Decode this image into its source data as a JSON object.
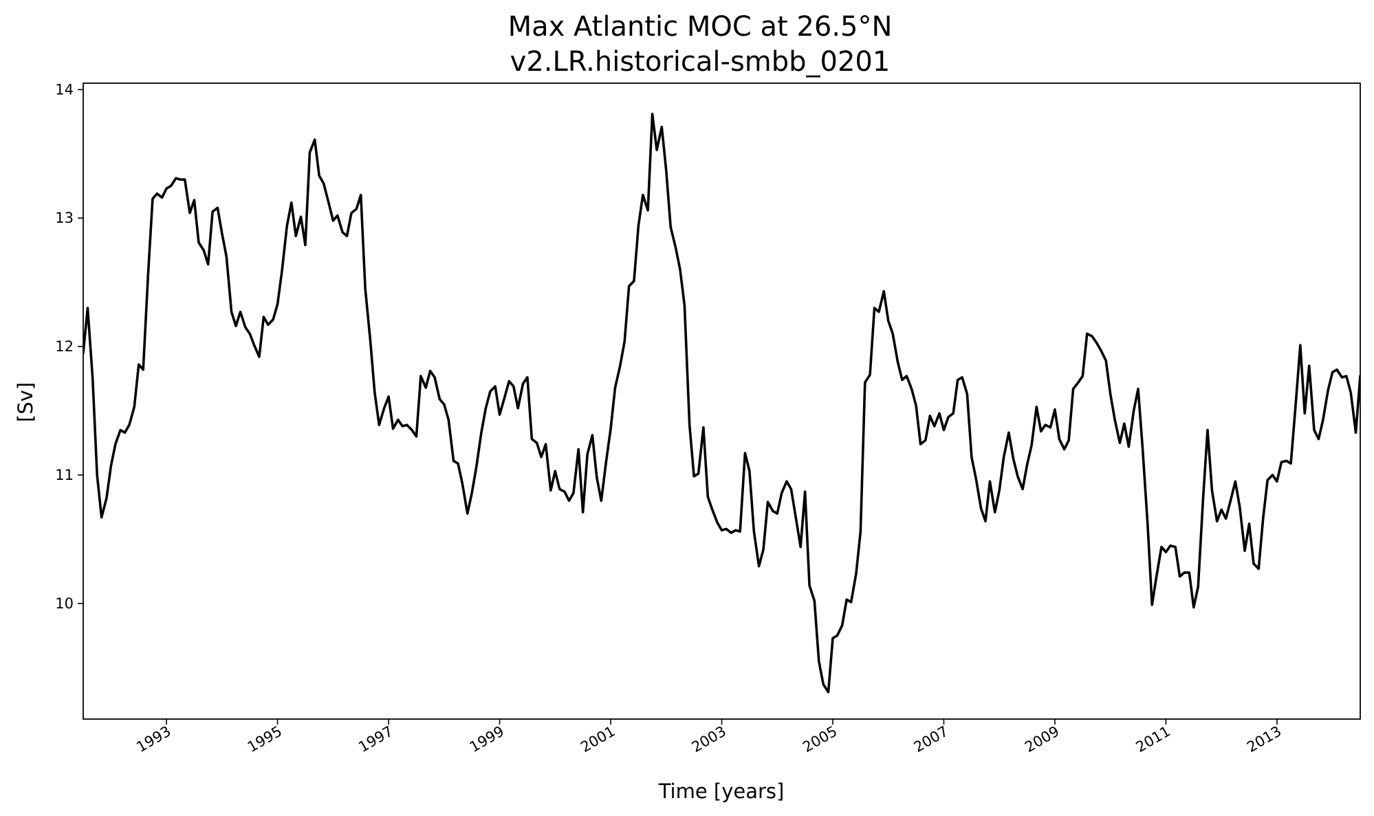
{
  "chart_data": {
    "type": "line",
    "title": "Max Atlantic MOC at 26.5°N",
    "subtitle": "v2.LR.historical-smbb_0201",
    "xlabel": "Time [years]",
    "ylabel": "[Sv]",
    "xlim": [
      1991.5,
      2014.5
    ],
    "ylim": [
      9.1,
      14.05
    ],
    "x_ticks": [
      "1993",
      "1995",
      "1997",
      "1999",
      "2001",
      "2003",
      "2005",
      "2007",
      "2009",
      "2011",
      "2013"
    ],
    "y_ticks": [
      "10",
      "11",
      "12",
      "13",
      "14"
    ],
    "grid": false,
    "legend": "none",
    "line_color": "#000000",
    "series": [
      {
        "x": [
          1991.5,
          1991.58,
          1991.67,
          1991.75,
          1991.83,
          1991.92,
          1992.0,
          1992.08,
          1992.17,
          1992.25,
          1992.33,
          1992.42,
          1992.5,
          1992.58,
          1992.67,
          1992.75,
          1992.83,
          1992.92,
          1993.0,
          1993.08,
          1993.17,
          1993.25,
          1993.33,
          1993.42,
          1993.5,
          1993.58,
          1993.67,
          1993.75,
          1993.83,
          1993.92,
          1994.0,
          1994.08,
          1994.17,
          1994.25,
          1994.33,
          1994.42,
          1994.5,
          1994.58,
          1994.67,
          1994.75,
          1994.83,
          1994.92,
          1995.0,
          1995.08,
          1995.17,
          1995.25,
          1995.33,
          1995.42,
          1995.5,
          1995.58,
          1995.67,
          1995.75,
          1995.83,
          1995.92,
          1996.0,
          1996.08,
          1996.17,
          1996.25,
          1996.33,
          1996.42,
          1996.5,
          1996.58,
          1996.67,
          1996.75,
          1996.83,
          1996.92,
          1997.0,
          1997.08,
          1997.17,
          1997.25,
          1997.33,
          1997.42,
          1997.5,
          1997.58,
          1997.67,
          1997.75,
          1997.83,
          1997.92,
          1998.0,
          1998.08,
          1998.17,
          1998.25,
          1998.33,
          1998.42,
          1998.5,
          1998.58,
          1998.67,
          1998.75,
          1998.83,
          1998.92,
          1999.0,
          1999.08,
          1999.17,
          1999.25,
          1999.33,
          1999.42,
          1999.5,
          1999.58,
          1999.67,
          1999.75,
          1999.83,
          1999.92,
          2000.0,
          2000.08,
          2000.17,
          2000.25,
          2000.33,
          2000.42,
          2000.5,
          2000.58,
          2000.67,
          2000.75,
          2000.83,
          2000.92,
          2001.0,
          2001.08,
          2001.17,
          2001.25,
          2001.33,
          2001.42,
          2001.5,
          2001.58,
          2001.67,
          2001.75,
          2001.83,
          2001.92,
          2002.0,
          2002.08,
          2002.17,
          2002.25,
          2002.33,
          2002.42,
          2002.5,
          2002.58,
          2002.67,
          2002.75,
          2002.83,
          2002.92,
          2003.0,
          2003.08,
          2003.17,
          2003.25,
          2003.33,
          2003.42,
          2003.5,
          2003.58,
          2003.67,
          2003.75,
          2003.83,
          2003.92,
          2004.0,
          2004.08,
          2004.17,
          2004.25,
          2004.33,
          2004.42,
          2004.5,
          2004.58,
          2004.67,
          2004.75,
          2004.83,
          2004.92,
          2005.0,
          2005.08,
          2005.17,
          2005.25,
          2005.33,
          2005.42,
          2005.5,
          2005.58,
          2005.67,
          2005.75,
          2005.83,
          2005.92,
          2006.0,
          2006.08,
          2006.17,
          2006.25,
          2006.33,
          2006.42,
          2006.5,
          2006.58,
          2006.67,
          2006.75,
          2006.83,
          2006.92,
          2007.0,
          2007.08,
          2007.17,
          2007.25,
          2007.33,
          2007.42,
          2007.5,
          2007.58,
          2007.67,
          2007.75,
          2007.83,
          2007.92,
          2008.0,
          2008.08,
          2008.17,
          2008.25,
          2008.33,
          2008.42,
          2008.5,
          2008.58,
          2008.67,
          2008.75,
          2008.83,
          2008.92,
          2009.0,
          2009.08,
          2009.17,
          2009.25,
          2009.33,
          2009.42,
          2009.5,
          2009.58,
          2009.67,
          2009.75,
          2009.83,
          2009.92,
          2010.0,
          2010.08,
          2010.17,
          2010.25,
          2010.33,
          2010.42,
          2010.5,
          2010.58,
          2010.67,
          2010.75,
          2010.83,
          2010.92,
          2011.0,
          2011.08,
          2011.17,
          2011.25,
          2011.33,
          2011.42,
          2011.5,
          2011.58,
          2011.67,
          2011.75,
          2011.83,
          2011.92,
          2012.0,
          2012.08,
          2012.17,
          2012.25,
          2012.33,
          2012.42,
          2012.5,
          2012.58,
          2012.67,
          2012.75,
          2012.83,
          2012.92,
          2013.0,
          2013.08,
          2013.17,
          2013.25,
          2013.33,
          2013.42,
          2013.5,
          2013.58,
          2013.67,
          2013.75,
          2013.83,
          2013.92,
          2014.0,
          2014.08,
          2014.17,
          2014.25,
          2014.33,
          2014.42,
          2014.5
        ],
        "values": [
          11.95,
          12.3,
          11.75,
          11.0,
          10.67,
          10.82,
          11.07,
          11.24,
          11.35,
          11.33,
          11.39,
          11.53,
          11.86,
          11.82,
          12.57,
          13.15,
          13.19,
          13.16,
          13.23,
          13.25,
          13.31,
          13.3,
          13.3,
          13.04,
          13.14,
          12.81,
          12.75,
          12.64,
          13.05,
          13.08,
          12.88,
          12.7,
          12.27,
          12.16,
          12.27,
          12.15,
          12.1,
          12.01,
          11.92,
          12.23,
          12.17,
          12.21,
          12.33,
          12.59,
          12.94,
          13.12,
          12.86,
          13.01,
          12.79,
          13.51,
          13.61,
          13.33,
          13.27,
          13.12,
          12.98,
          13.02,
          12.89,
          12.86,
          13.04,
          13.07,
          13.18,
          12.45,
          12.05,
          11.64,
          11.39,
          11.52,
          11.61,
          11.36,
          11.43,
          11.38,
          11.39,
          11.35,
          11.3,
          11.77,
          11.68,
          11.81,
          11.76,
          11.59,
          11.55,
          11.43,
          11.11,
          11.09,
          10.93,
          10.7,
          10.86,
          11.06,
          11.33,
          11.52,
          11.65,
          11.69,
          11.47,
          11.59,
          11.73,
          11.69,
          11.52,
          11.71,
          11.76,
          11.28,
          11.25,
          11.14,
          11.24,
          10.88,
          11.03,
          10.89,
          10.87,
          10.8,
          10.86,
          11.2,
          10.71,
          11.16,
          11.31,
          10.98,
          10.8,
          11.11,
          11.36,
          11.68,
          11.85,
          12.04,
          12.47,
          12.51,
          12.94,
          13.18,
          13.06,
          13.81,
          13.53,
          13.71,
          13.37,
          12.93,
          12.77,
          12.6,
          12.32,
          11.39,
          10.99,
          11.01,
          11.37,
          10.83,
          10.73,
          10.63,
          10.57,
          10.58,
          10.55,
          10.57,
          10.56,
          11.17,
          11.03,
          10.56,
          10.29,
          10.42,
          10.79,
          10.72,
          10.7,
          10.86,
          10.95,
          10.89,
          10.68,
          10.44,
          10.87,
          10.14,
          10.02,
          9.55,
          9.37,
          9.31,
          9.73,
          9.75,
          9.83,
          10.03,
          10.01,
          10.23,
          10.56,
          11.72,
          11.78,
          12.3,
          12.27,
          12.43,
          12.2,
          12.1,
          11.88,
          11.74,
          11.77,
          11.67,
          11.54,
          11.24,
          11.27,
          11.46,
          11.38,
          11.48,
          11.35,
          11.45,
          11.48,
          11.74,
          11.76,
          11.63,
          11.14,
          10.97,
          10.74,
          10.64,
          10.95,
          10.71,
          10.88,
          11.14,
          11.33,
          11.13,
          10.99,
          10.89,
          11.08,
          11.23,
          11.53,
          11.34,
          11.39,
          11.37,
          11.51,
          11.28,
          11.2,
          11.27,
          11.67,
          11.72,
          11.77,
          12.1,
          12.08,
          12.03,
          11.97,
          11.89,
          11.63,
          11.43,
          11.25,
          11.4,
          11.22,
          11.5,
          11.67,
          11.21,
          10.62,
          9.99,
          10.21,
          10.44,
          10.4,
          10.45,
          10.44,
          10.21,
          10.24,
          10.24,
          9.97,
          10.13,
          10.82,
          11.35,
          10.88,
          10.64,
          10.73,
          10.66,
          10.81,
          10.95,
          10.75,
          10.41,
          10.62,
          10.31,
          10.27,
          10.66,
          10.96,
          11.0,
          10.95,
          11.1,
          11.11,
          11.09,
          11.51,
          12.01,
          11.48,
          11.85,
          11.35,
          11.28,
          11.43,
          11.66,
          11.8,
          11.82,
          11.76,
          11.77,
          11.64,
          11.33,
          11.77
        ]
      }
    ]
  }
}
